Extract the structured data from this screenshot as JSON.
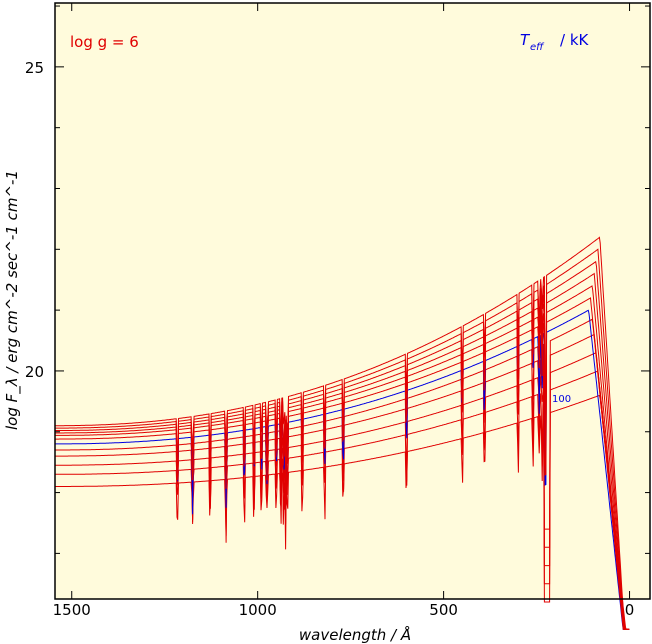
{
  "chart_data": {
    "type": "line",
    "title": "",
    "xlabel": "wavelength / Å",
    "ylabel": "log F_λ / erg cm^-2 sec^-1 cm^-1",
    "xlim": [
      1545,
      -55
    ],
    "ylim": [
      16.25,
      26.05
    ],
    "x_ticks": [
      1500,
      1000,
      500,
      0
    ],
    "y_ticks": [
      20,
      25
    ],
    "x_tick_labels": [
      "1500",
      "1000",
      "500",
      "0"
    ],
    "y_tick_labels": [
      "20",
      "25"
    ],
    "grid": false,
    "background_color": "#fffbdc",
    "annotations": {
      "left": "log g = 6",
      "right_label": "T",
      "right_sub": "eff",
      "right_unit": "/ kK",
      "series_label": "100"
    },
    "colors": {
      "red": "#e00000",
      "blue": "#0000e0",
      "annotation_red": "#e00000",
      "annotation_blue": "#0000e0"
    },
    "series": [
      {
        "color": "#e00000",
        "values_left": 18.1,
        "values_peak": 19.6,
        "peak_x": 80
      },
      {
        "color": "#e00000",
        "values_left": 18.3,
        "values_peak": 20.0,
        "peak_x": 85
      },
      {
        "color": "#e00000",
        "values_left": 18.45,
        "values_peak": 20.3,
        "peak_x": 90
      },
      {
        "color": "#e00000",
        "values_left": 18.6,
        "values_peak": 20.6,
        "peak_x": 95
      },
      {
        "color": "#e00000",
        "values_left": 18.7,
        "values_peak": 20.85,
        "peak_x": 100
      },
      {
        "color": "#0000e0",
        "name": "100",
        "values_left": 18.8,
        "values_peak": 21.0,
        "peak_x": 110
      },
      {
        "color": "#e00000",
        "values_left": 18.88,
        "values_peak": 21.2,
        "peak_x": 105
      },
      {
        "color": "#e00000",
        "values_left": 18.94,
        "values_peak": 21.4,
        "peak_x": 100
      },
      {
        "color": "#e00000",
        "values_left": 18.98,
        "values_peak": 21.6,
        "peak_x": 95
      },
      {
        "color": "#e00000",
        "values_left": 19.02,
        "values_peak": 21.8,
        "peak_x": 90
      },
      {
        "color": "#e00000",
        "values_left": 19.06,
        "values_peak": 22.0,
        "peak_x": 85
      },
      {
        "color": "#e00000",
        "values_left": 19.1,
        "values_peak": 22.2,
        "peak_x": 80
      }
    ]
  }
}
